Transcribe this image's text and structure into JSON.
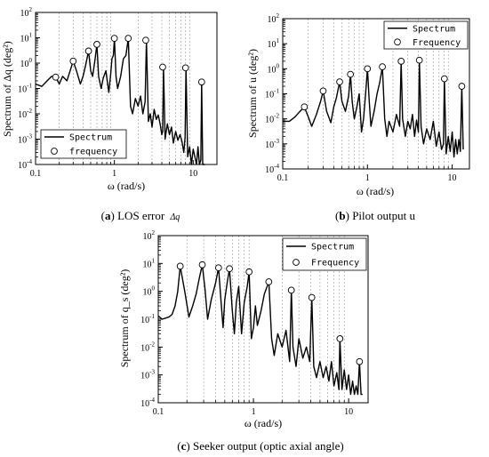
{
  "figure": {
    "panels": [
      {
        "id": "a",
        "letter": "a",
        "text": "LOS error ",
        "symbol": "Δq"
      },
      {
        "id": "b",
        "letter": "b",
        "text": "Pilot output u",
        "symbol": ""
      },
      {
        "id": "c",
        "letter": "c",
        "text": "Seeker output (optic axial angle)",
        "symbol": ""
      }
    ]
  },
  "chart_data": [
    {
      "id": "a",
      "type": "line",
      "xscale": "log",
      "yscale": "log",
      "xlim": [
        0.1,
        20
      ],
      "ylim": [
        0.0001,
        100
      ],
      "xticks": [
        "0.1",
        "1",
        "10"
      ],
      "yticks": [
        "10^-4",
        "10^-3",
        "10^-2",
        "10^-1",
        "10^0",
        "10^1",
        "10^2"
      ],
      "grid": "x-minor-dashed",
      "xlabel": "ω (rad/s)",
      "ylabel": "Spectrum of Δq (deg²)",
      "legend": {
        "position": "bottom-left",
        "entries": [
          "Spectrum",
          "frequency"
        ]
      },
      "series": [
        {
          "name": "Spectrum",
          "style": "line",
          "x": [
            0.1,
            0.12,
            0.14,
            0.16,
            0.18,
            0.2,
            0.22,
            0.25,
            0.28,
            0.3,
            0.33,
            0.37,
            0.4,
            0.43,
            0.47,
            0.5,
            0.53,
            0.57,
            0.6,
            0.63,
            0.68,
            0.72,
            0.78,
            0.85,
            0.9,
            0.93,
            0.97,
            1.0,
            1.05,
            1.1,
            1.2,
            1.3,
            1.4,
            1.5,
            1.6,
            1.7,
            1.85,
            2.0,
            2.15,
            2.3,
            2.45,
            2.55,
            2.7,
            2.85,
            3.0,
            3.2,
            3.4,
            3.6,
            3.8,
            4.0,
            4.1,
            4.2,
            4.4,
            4.7,
            5.0,
            5.3,
            5.6,
            6.0,
            6.4,
            6.8,
            7.2,
            7.6,
            7.9,
            8.1,
            8.5,
            9.0,
            9.5,
            10.0,
            10.5,
            11.0,
            11.5,
            12.0,
            12.5,
            12.8,
            13.2,
            14.0
          ],
          "y": [
            0.15,
            0.12,
            0.2,
            0.3,
            0.28,
            0.15,
            0.3,
            0.2,
            0.6,
            1.2,
            0.5,
            0.15,
            0.3,
            0.8,
            3,
            0.5,
            0.3,
            1.5,
            5.5,
            0.3,
            0.1,
            0.25,
            0.5,
            0.07,
            0.4,
            1.5,
            2,
            9.5,
            0.3,
            0.1,
            0.3,
            1.5,
            2,
            9.5,
            0.02,
            0.01,
            0.04,
            0.02,
            0.05,
            0.01,
            0.03,
            8,
            0.005,
            0.01,
            0.003,
            0.015,
            0.006,
            0.009,
            0.004,
            0.0015,
            0.002,
            0.7,
            0.001,
            0.004,
            0.0015,
            0.003,
            0.0007,
            0.002,
            0.0009,
            0.0015,
            0.0008,
            0.0003,
            0.0012,
            0.65,
            0.0002,
            0.0005,
            0.0001,
            0.0004,
            0.0002,
            0.0001,
            0.0005,
            0.0001,
            0.00015,
            0.18,
            0.0001,
            0.0001
          ]
        },
        {
          "name": "frequency",
          "style": "markers",
          "x": [
            0.18,
            0.3,
            0.47,
            0.6,
            1.0,
            1.5,
            2.5,
            4.1,
            8.0,
            12.8
          ],
          "y": [
            0.28,
            1.2,
            3,
            5.5,
            9.5,
            9.5,
            8,
            0.7,
            0.65,
            0.18
          ]
        }
      ]
    },
    {
      "id": "b",
      "type": "line",
      "xscale": "log",
      "yscale": "log",
      "xlim": [
        0.1,
        16
      ],
      "ylim": [
        0.0001,
        100
      ],
      "xticks": [
        "0.1",
        "1",
        "10"
      ],
      "yticks": [
        "10^-4",
        "10^-3",
        "10^-2",
        "10^-1",
        "10^0",
        "10^1",
        "10^2"
      ],
      "grid": "x-minor-dashed",
      "xlabel": "ω (rad/s)",
      "ylabel": "Spectrum of u (deg²)",
      "legend": {
        "position": "top-right",
        "entries": [
          "Spectrum",
          "Frequency"
        ]
      },
      "series": [
        {
          "name": "Spectrum",
          "style": "line",
          "x": [
            0.1,
            0.12,
            0.14,
            0.16,
            0.18,
            0.2,
            0.22,
            0.25,
            0.28,
            0.3,
            0.33,
            0.37,
            0.4,
            0.43,
            0.47,
            0.5,
            0.55,
            0.6,
            0.63,
            0.66,
            0.7,
            0.75,
            0.8,
            0.85,
            0.9,
            0.95,
            1.0,
            1.05,
            1.1,
            1.2,
            1.3,
            1.4,
            1.5,
            1.6,
            1.7,
            1.8,
            2.0,
            2.2,
            2.4,
            2.5,
            2.6,
            2.8,
            3.0,
            3.2,
            3.4,
            3.6,
            3.8,
            4.0,
            4.1,
            4.3,
            4.6,
            5.0,
            5.5,
            6.0,
            6.5,
            7.0,
            7.5,
            7.9,
            8.1,
            8.5,
            9.0,
            9.5,
            10.0,
            10.5,
            11.0,
            11.5,
            12.0,
            12.5,
            13.0,
            13.5
          ],
          "y": [
            0.008,
            0.008,
            0.012,
            0.02,
            0.03,
            0.012,
            0.005,
            0.015,
            0.05,
            0.13,
            0.02,
            0.007,
            0.03,
            0.07,
            0.3,
            0.05,
            0.02,
            0.08,
            0.6,
            0.05,
            0.01,
            0.03,
            0.1,
            0.003,
            0.01,
            0.1,
            1.0,
            0.05,
            0.005,
            0.02,
            0.1,
            0.3,
            1.2,
            0.01,
            0.002,
            0.008,
            0.003,
            0.015,
            0.005,
            2.0,
            0.01,
            0.002,
            0.008,
            0.004,
            0.015,
            0.002,
            0.009,
            0.003,
            2.2,
            0.005,
            0.001,
            0.004,
            0.0015,
            0.008,
            0.0008,
            0.003,
            0.0006,
            0.001,
            0.4,
            0.0004,
            0.002,
            0.0005,
            0.003,
            0.0003,
            0.0015,
            0.0004,
            0.0015,
            0.0005,
            0.2,
            0.0006
          ]
        },
        {
          "name": "Frequency",
          "style": "markers",
          "x": [
            0.18,
            0.3,
            0.47,
            0.63,
            1.0,
            1.5,
            2.5,
            4.1,
            8.1,
            13.0
          ],
          "y": [
            0.03,
            0.13,
            0.3,
            0.6,
            1.0,
            1.2,
            2.0,
            2.2,
            0.4,
            0.2
          ]
        }
      ]
    },
    {
      "id": "c",
      "type": "line",
      "xscale": "log",
      "yscale": "log",
      "xlim": [
        0.1,
        16
      ],
      "ylim": [
        0.0001,
        100
      ],
      "xticks": [
        "0.1",
        "1",
        "10"
      ],
      "yticks": [
        "10^-4",
        "10^-3",
        "10^-2",
        "10^-1",
        "10^0",
        "10^1",
        "10^2"
      ],
      "grid": "x-minor-dashed",
      "xlabel": "ω (rad/s)",
      "ylabel": "Spectrum of q_s (deg²)",
      "legend": {
        "position": "top-right",
        "entries": [
          "Spectrum",
          "Frequency"
        ]
      },
      "series": [
        {
          "name": "Spectrum",
          "style": "line",
          "x": [
            0.1,
            0.11,
            0.12,
            0.13,
            0.14,
            0.15,
            0.16,
            0.17,
            0.19,
            0.21,
            0.23,
            0.25,
            0.27,
            0.29,
            0.31,
            0.33,
            0.36,
            0.4,
            0.43,
            0.46,
            0.48,
            0.5,
            0.53,
            0.56,
            0.6,
            0.63,
            0.66,
            0.7,
            0.75,
            0.8,
            0.86,
            0.9,
            0.95,
            1.0,
            1.05,
            1.1,
            1.2,
            1.3,
            1.45,
            1.55,
            1.65,
            1.8,
            2.0,
            2.2,
            2.4,
            2.5,
            2.6,
            2.8,
            3.0,
            3.3,
            3.6,
            3.9,
            4.1,
            4.3,
            4.6,
            5.0,
            5.4,
            5.8,
            6.2,
            6.6,
            7.0,
            7.5,
            7.9,
            8.1,
            8.5,
            9.0,
            9.5,
            10.0,
            10.5,
            11.0,
            11.5,
            12.0,
            12.5,
            13.0,
            13.5,
            14.0
          ],
          "y": [
            0.13,
            0.1,
            0.11,
            0.12,
            0.15,
            0.3,
            1.0,
            8,
            1.0,
            0.12,
            0.3,
            0.8,
            3,
            9,
            1.2,
            0.1,
            0.5,
            2,
            7,
            0.3,
            0.05,
            0.5,
            2,
            6.5,
            0.2,
            0.03,
            0.4,
            1.5,
            0.03,
            0.4,
            1.5,
            5,
            0.02,
            0.05,
            0.3,
            0.06,
            0.2,
            0.8,
            2.2,
            0.02,
            0.005,
            0.03,
            0.01,
            0.04,
            0.003,
            1.1,
            0.01,
            0.002,
            0.02,
            0.004,
            0.01,
            0.003,
            0.6,
            0.002,
            0.0008,
            0.003,
            0.0008,
            0.002,
            0.0006,
            0.003,
            0.0004,
            0.0012,
            0.0003,
            0.02,
            0.0003,
            0.0015,
            0.0003,
            0.001,
            0.0002,
            0.0006,
            0.0002,
            0.0004,
            0.0002,
            0.003,
            0.0002,
            0.0002
          ]
        },
        {
          "name": "Frequency",
          "style": "markers",
          "x": [
            0.17,
            0.29,
            0.43,
            0.56,
            0.9,
            1.45,
            2.5,
            4.1,
            8.1,
            13.0
          ],
          "y": [
            8,
            9,
            7,
            6.5,
            5,
            2.2,
            1.1,
            0.6,
            0.02,
            0.003
          ]
        }
      ]
    }
  ]
}
